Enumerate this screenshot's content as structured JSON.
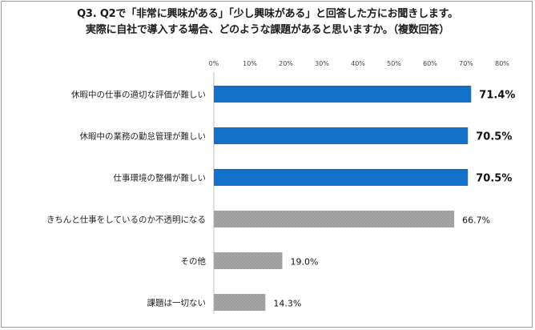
{
  "question": {
    "line1": "Q3.  Q2で「非常に興味がある」「少し興味がある」と回答した方にお聞きします。",
    "line2": "実際に自社で導入する場合、どのような課題があると思いますか。（複数回答）"
  },
  "chart_data": {
    "type": "bar",
    "orientation": "horizontal",
    "categories": [
      "休暇中の仕事の適切な評価が難しい",
      "休暇中の業務の勤怠管理が難しい",
      "仕事環境の整備が難しい",
      "きちんと仕事をしているのか不透明になる",
      "その他",
      "課題は一切ない"
    ],
    "values": [
      71.4,
      70.5,
      70.5,
      66.7,
      19.0,
      14.3
    ],
    "value_labels": [
      "71.4%",
      "70.5%",
      "70.5%",
      "66.7%",
      "19.0%",
      "14.3%"
    ],
    "highlight_top_n": 3,
    "xlim": [
      0,
      80
    ],
    "x_ticks": [
      0,
      10,
      20,
      30,
      40,
      50,
      60,
      70,
      80
    ],
    "x_tick_labels": [
      "0%",
      "10%",
      "20%",
      "30%",
      "40%",
      "50%",
      "60%",
      "70%",
      "80%"
    ],
    "colors": {
      "highlight": "#1270c8",
      "normal": "#a6a6a6",
      "axis": "#bfbfbf"
    }
  }
}
